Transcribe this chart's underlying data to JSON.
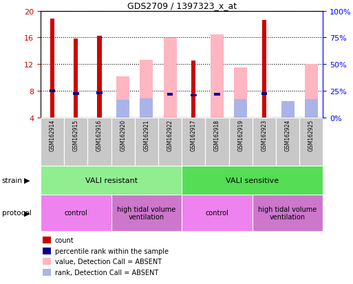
{
  "title": "GDS2709 / 1397323_x_at",
  "samples": [
    "GSM162914",
    "GSM162915",
    "GSM162916",
    "GSM162920",
    "GSM162921",
    "GSM162922",
    "GSM162917",
    "GSM162918",
    "GSM162919",
    "GSM162923",
    "GSM162924",
    "GSM162925"
  ],
  "count_values": [
    18.8,
    15.8,
    16.2,
    null,
    null,
    null,
    12.5,
    null,
    null,
    18.6,
    null,
    null
  ],
  "absent_value_values": [
    null,
    null,
    null,
    10.2,
    12.6,
    15.9,
    null,
    16.5,
    11.5,
    null,
    null,
    12.0
  ],
  "percentile_rank": [
    8.0,
    7.6,
    7.7,
    null,
    null,
    7.5,
    7.3,
    7.5,
    null,
    7.6,
    null,
    null
  ],
  "absent_rank_values": [
    null,
    null,
    null,
    6.7,
    6.9,
    null,
    null,
    null,
    6.8,
    null,
    6.5,
    6.8
  ],
  "ylim": [
    4,
    20
  ],
  "yticks": [
    4,
    8,
    12,
    16,
    20
  ],
  "y2lim": [
    0,
    100
  ],
  "y2ticks": [
    0,
    25,
    50,
    75,
    100
  ],
  "strain_groups": [
    {
      "label": "VALI resistant",
      "start": 0,
      "end": 6,
      "color": "#90ee90"
    },
    {
      "label": "VALI sensitive",
      "start": 6,
      "end": 12,
      "color": "#55dd55"
    }
  ],
  "protocol_groups": [
    {
      "label": "control",
      "start": 0,
      "end": 3,
      "color": "#ee82ee"
    },
    {
      "label": "high tidal volume\nventilation",
      "start": 3,
      "end": 6,
      "color": "#cc77cc"
    },
    {
      "label": "control",
      "start": 6,
      "end": 9,
      "color": "#ee82ee"
    },
    {
      "label": "high tidal volume\nventilation",
      "start": 9,
      "end": 12,
      "color": "#cc77cc"
    }
  ],
  "count_color": "#cc0000",
  "absent_value_color": "#ffb6c1",
  "percentile_rank_color": "#00008b",
  "absent_rank_color": "#aab4e8",
  "sample_bg_color": "#c8c8c8",
  "left_axis_color": "#cc0000",
  "right_axis_color": "#0000ff",
  "legend_items": [
    {
      "label": "count",
      "color": "#cc0000"
    },
    {
      "label": "percentile rank within the sample",
      "color": "#00008b"
    },
    {
      "label": "value, Detection Call = ABSENT",
      "color": "#ffb6c1"
    },
    {
      "label": "rank, Detection Call = ABSENT",
      "color": "#aab4e8"
    }
  ]
}
